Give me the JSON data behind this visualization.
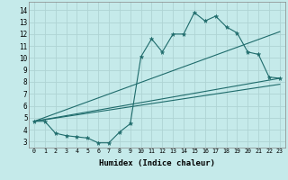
{
  "xlabel": "Humidex (Indice chaleur)",
  "bg_color": "#c5eaea",
  "grid_color": "#afd4d4",
  "line_color": "#1e6b6b",
  "x_ticks": [
    0,
    1,
    2,
    3,
    4,
    5,
    6,
    7,
    8,
    9,
    10,
    11,
    12,
    13,
    14,
    15,
    16,
    17,
    18,
    19,
    20,
    21,
    22,
    23
  ],
  "y_ticks": [
    3,
    4,
    5,
    6,
    7,
    8,
    9,
    10,
    11,
    12,
    13,
    14
  ],
  "ylim": [
    2.5,
    14.7
  ],
  "xlim": [
    -0.5,
    23.5
  ],
  "series1_x": [
    0,
    1,
    2,
    3,
    4,
    5,
    6,
    7,
    8,
    9,
    10,
    11,
    12,
    13,
    14,
    15,
    16,
    17,
    18,
    19,
    20,
    21,
    22,
    23
  ],
  "series1_y": [
    4.7,
    4.7,
    3.7,
    3.5,
    3.4,
    3.3,
    2.9,
    2.9,
    3.8,
    4.5,
    10.1,
    11.6,
    10.5,
    12.0,
    12.0,
    13.8,
    13.1,
    13.5,
    12.6,
    12.1,
    10.5,
    10.3,
    8.4,
    8.3
  ],
  "line2_x": [
    0,
    23
  ],
  "line2_y": [
    4.7,
    12.2
  ],
  "line3_x": [
    0,
    23
  ],
  "line3_y": [
    4.7,
    8.3
  ],
  "line4_x": [
    0,
    23
  ],
  "line4_y": [
    4.7,
    7.8
  ]
}
